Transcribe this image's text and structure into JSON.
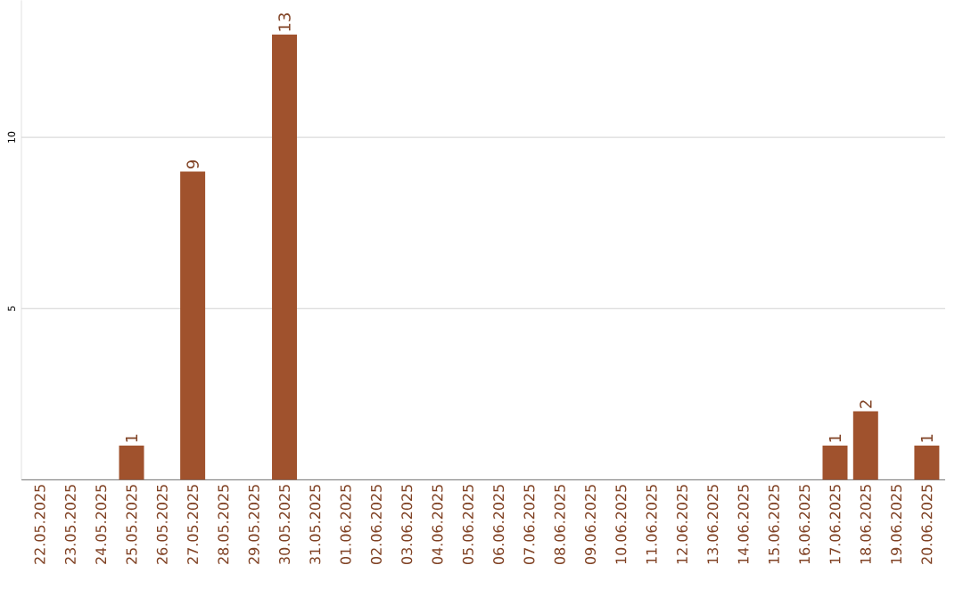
{
  "chart_data": {
    "type": "bar",
    "categories": [
      "22.05.2025",
      "23.05.2025",
      "24.05.2025",
      "25.05.2025",
      "26.05.2025",
      "27.05.2025",
      "28.05.2025",
      "29.05.2025",
      "30.05.2025",
      "31.05.2025",
      "01.06.2025",
      "02.06.2025",
      "03.06.2025",
      "04.06.2025",
      "05.06.2025",
      "06.06.2025",
      "07.06.2025",
      "08.06.2025",
      "09.06.2025",
      "10.06.2025",
      "11.06.2025",
      "12.06.2025",
      "13.06.2025",
      "14.06.2025",
      "15.06.2025",
      "16.06.2025",
      "17.06.2025",
      "18.06.2025",
      "19.06.2025",
      "20.06.2025"
    ],
    "values": [
      0,
      0,
      0,
      1,
      0,
      9,
      0,
      0,
      13,
      0,
      0,
      0,
      0,
      0,
      0,
      0,
      0,
      0,
      0,
      0,
      0,
      0,
      0,
      0,
      0,
      0,
      1,
      2,
      0,
      1
    ],
    "value_labels": [
      null,
      null,
      null,
      "1",
      null,
      "9",
      null,
      null,
      "13",
      null,
      null,
      null,
      null,
      null,
      null,
      null,
      null,
      null,
      null,
      null,
      null,
      null,
      null,
      null,
      null,
      null,
      "1",
      "2",
      null,
      "1"
    ],
    "color": "#a0522d",
    "ylim": [
      0,
      14
    ],
    "yticks": [
      5,
      10
    ],
    "grid": "y"
  }
}
